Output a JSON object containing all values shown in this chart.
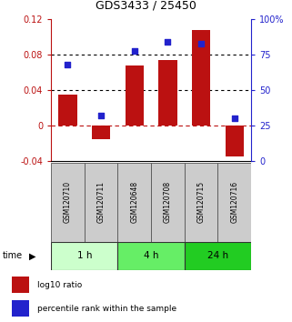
{
  "title": "GDS3433 / 25450",
  "samples": [
    "GSM120710",
    "GSM120711",
    "GSM120648",
    "GSM120708",
    "GSM120715",
    "GSM120716"
  ],
  "log10_ratio": [
    0.035,
    -0.015,
    0.068,
    0.074,
    0.108,
    -0.035
  ],
  "percentile_rank": [
    68,
    32,
    78,
    84,
    83,
    30
  ],
  "bar_color": "#bb1111",
  "dot_color": "#2222cc",
  "ylim_left": [
    -0.04,
    0.12
  ],
  "ylim_right": [
    0,
    100
  ],
  "yticks_left": [
    -0.04,
    0.0,
    0.04,
    0.08,
    0.12
  ],
  "yticks_right": [
    0,
    25,
    50,
    75,
    100
  ],
  "ytick_labels_left": [
    "-0.04",
    "0",
    "0.04",
    "0.08",
    "0.12"
  ],
  "ytick_labels_right": [
    "0",
    "25",
    "50",
    "75",
    "100%"
  ],
  "dotted_lines": [
    0.04,
    0.08
  ],
  "time_groups": [
    {
      "label": "1 h",
      "indices": [
        0,
        1
      ],
      "color": "#ccffcc"
    },
    {
      "label": "4 h",
      "indices": [
        2,
        3
      ],
      "color": "#66ee66"
    },
    {
      "label": "24 h",
      "indices": [
        4,
        5
      ],
      "color": "#22cc22"
    }
  ],
  "legend_bar_label": "log10 ratio",
  "legend_dot_label": "percentile rank within the sample",
  "time_label": "time",
  "background_color": "#ffffff",
  "header_bg_color": "#cccccc"
}
